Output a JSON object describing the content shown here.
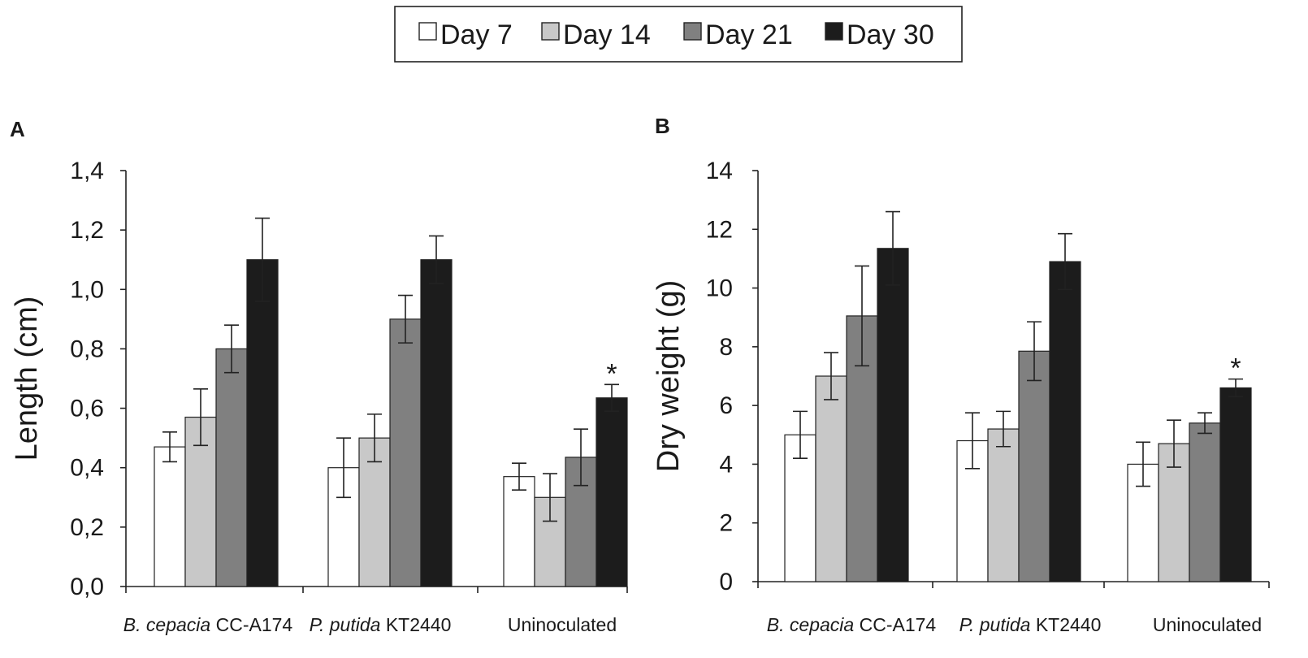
{
  "legend": {
    "entries": [
      "Day 7",
      "Day 14",
      "Day 21",
      "Day 30"
    ],
    "colors": [
      "#ffffff",
      "#c8c8c8",
      "#808080",
      "#1c1c1c"
    ]
  },
  "chart_data": [
    {
      "type": "bar",
      "panel_label": "A",
      "ylabel": "Length (cm)",
      "ylim": [
        0,
        1.4
      ],
      "yticks": [
        0,
        0.2,
        0.4,
        0.6,
        0.8,
        1.0,
        1.2,
        1.4
      ],
      "ytick_labels": [
        "0,0",
        "0,2",
        "0,4",
        "0,6",
        "0,8",
        "1,0",
        "1,2",
        "1,4"
      ],
      "categories": [
        {
          "italic": "B. cepacia",
          "plain": " CC-A174"
        },
        {
          "italic": "P. putida",
          "plain": " KT2440"
        },
        {
          "italic": "",
          "plain": "Uninoculated"
        }
      ],
      "series": [
        {
          "name": "Day 7",
          "values": [
            0.47,
            0.4,
            0.37
          ],
          "errors": [
            0.05,
            0.1,
            0.045
          ]
        },
        {
          "name": "Day 14",
          "values": [
            0.57,
            0.5,
            0.3
          ],
          "errors": [
            0.095,
            0.08,
            0.08
          ]
        },
        {
          "name": "Day 21",
          "values": [
            0.8,
            0.9,
            0.435
          ],
          "errors": [
            0.08,
            0.08,
            0.095
          ]
        },
        {
          "name": "Day 30",
          "values": [
            1.1,
            1.1,
            0.635
          ],
          "errors": [
            0.14,
            0.08,
            0.045
          ]
        }
      ],
      "annotation": {
        "text": "*",
        "category_index": 2,
        "series_index": 3
      }
    },
    {
      "type": "bar",
      "panel_label": "B",
      "ylabel": "Dry weight (g)",
      "ylim": [
        0,
        14
      ],
      "yticks": [
        0,
        2,
        4,
        6,
        8,
        10,
        12,
        14
      ],
      "ytick_labels": [
        "0",
        "2",
        "4",
        "6",
        "8",
        "10",
        "12",
        "14"
      ],
      "categories": [
        {
          "italic": "B. cepacia",
          "plain": " CC-A174"
        },
        {
          "italic": "P. putida",
          "plain": " KT2440"
        },
        {
          "italic": "",
          "plain": "Uninoculated"
        }
      ],
      "series": [
        {
          "name": "Day 7",
          "values": [
            5.0,
            4.8,
            4.0
          ],
          "errors": [
            0.8,
            0.95,
            0.75
          ]
        },
        {
          "name": "Day 14",
          "values": [
            7.0,
            5.2,
            4.7
          ],
          "errors": [
            0.8,
            0.6,
            0.8
          ]
        },
        {
          "name": "Day 21",
          "values": [
            9.05,
            7.85,
            5.4
          ],
          "errors": [
            1.7,
            1.0,
            0.35
          ]
        },
        {
          "name": "Day 30",
          "values": [
            11.35,
            10.9,
            6.6
          ],
          "errors": [
            1.25,
            0.95,
            0.3
          ]
        }
      ],
      "annotation": {
        "text": "*",
        "category_index": 2,
        "series_index": 3
      }
    }
  ]
}
